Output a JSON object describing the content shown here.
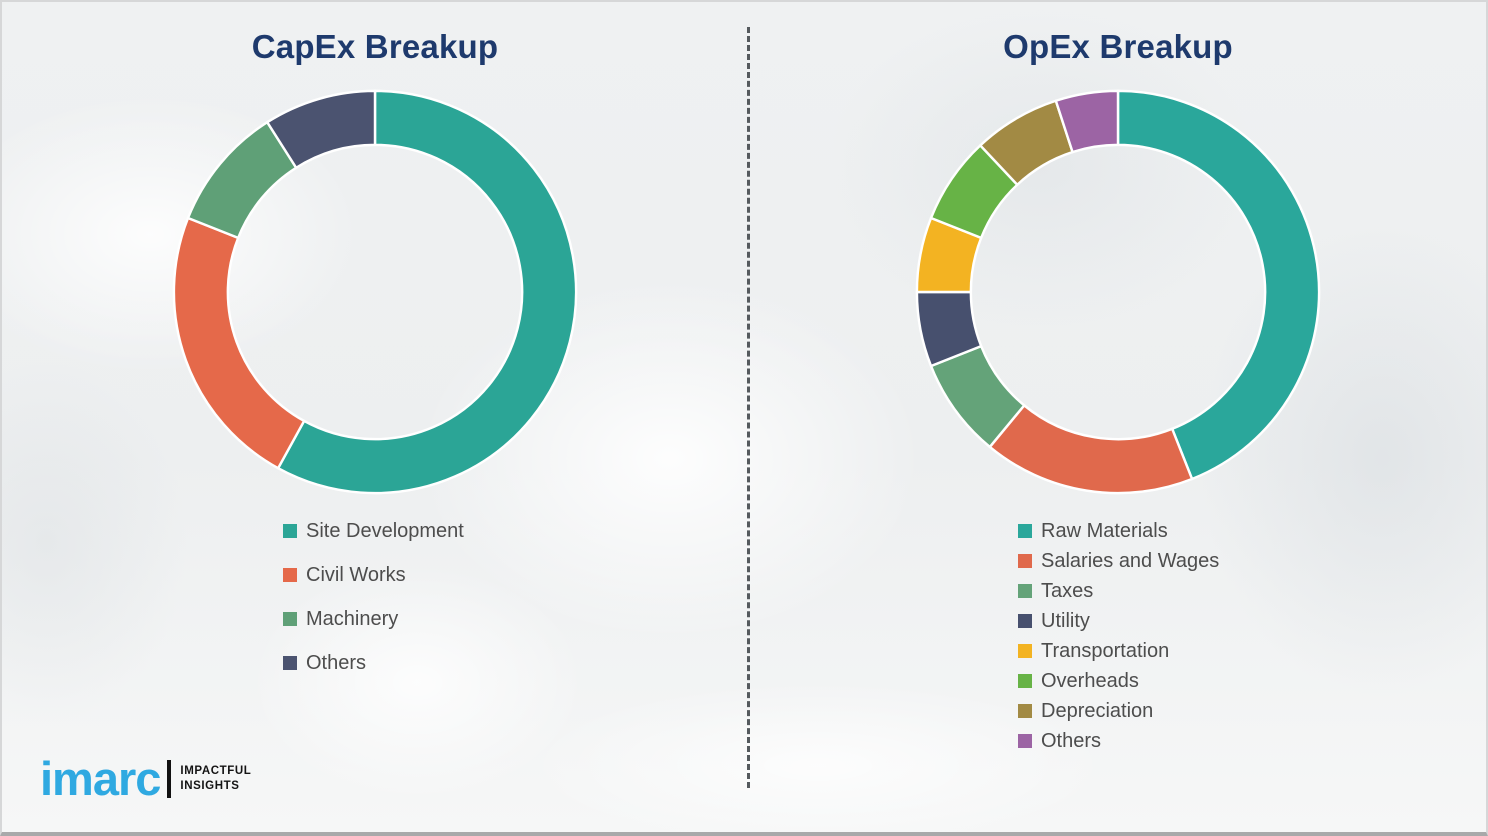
{
  "page": {
    "background_color": "#f0f1f2",
    "divider_style": "vertical-dashed",
    "divider_color": "#555a5e",
    "title_color": "#1e3a6d",
    "legend_text_color": "#4d4d4d"
  },
  "chart_data": [
    {
      "type": "pie",
      "subtype": "donut",
      "title": "CapEx Breakup",
      "start_angle_deg": 0,
      "direction": "clockwise",
      "inner_radius_ratio": 0.73,
      "labels": [
        "Site Development",
        "Civil Works",
        "Machinery",
        "Others"
      ],
      "values": [
        58,
        23,
        10,
        9
      ],
      "colors": [
        "#2ba596",
        "#e5694a",
        "#5fa077",
        "#4b5370"
      ],
      "legend_position": "below-left"
    },
    {
      "type": "pie",
      "subtype": "donut",
      "title": "OpEx Breakup",
      "start_angle_deg": 0,
      "direction": "clockwise",
      "inner_radius_ratio": 0.73,
      "labels": [
        "Raw Materials",
        "Salaries and Wages",
        "Taxes",
        "Utility",
        "Transportation",
        "Overheads",
        "Depreciation",
        "Others"
      ],
      "values": [
        44,
        17,
        8,
        6,
        6,
        7,
        7,
        5
      ],
      "colors": [
        "#2aa79b",
        "#e0694c",
        "#64a379",
        "#47506e",
        "#f3b322",
        "#67b346",
        "#a28a44",
        "#9c64a4"
      ],
      "legend_position": "below-left"
    }
  ],
  "logo": {
    "brand": "imarc",
    "brand_color": "#2fa9e1",
    "tagline_line1": "IMPACTFUL",
    "tagline_line2": "INSIGHTS"
  }
}
